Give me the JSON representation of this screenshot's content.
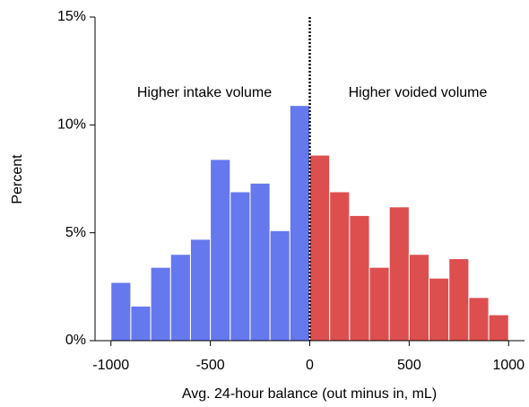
{
  "chart_data": {
    "type": "histogram",
    "x_label": "Avg. 24-hour balance (out minus in, mL)",
    "y_label": "Percent",
    "annotations": [
      "Higher intake volume",
      "Higher voided volume"
    ],
    "series": [
      {
        "color": "#6678ee",
        "bins": [
          -1000,
          -900,
          -800,
          -700,
          -600,
          -500,
          -400,
          -300,
          -200,
          -100,
          0
        ],
        "values": [
          2.7,
          1.6,
          3.4,
          4.0,
          4.7,
          8.4,
          6.9,
          7.3,
          5.1,
          10.9
        ]
      },
      {
        "color": "#dd4f4f",
        "bins": [
          0,
          100,
          200,
          300,
          400,
          500,
          600,
          700,
          800,
          900,
          1000
        ],
        "values": [
          8.6,
          6.9,
          5.8,
          3.4,
          6.2,
          4.0,
          2.9,
          3.8,
          2.0,
          1.2
        ]
      }
    ],
    "reference_line": {
      "x": 0,
      "style": "dotted"
    },
    "xlim": [
      -1080,
      1080
    ],
    "xticks": [
      -1000,
      -500,
      0,
      500,
      1000
    ],
    "ylim": [
      0,
      15
    ],
    "yticks": [
      {
        "value": 0,
        "label": "0%"
      },
      {
        "value": 5,
        "label": "5%"
      },
      {
        "value": 10,
        "label": "10%"
      },
      {
        "value": 15,
        "label": "15%"
      }
    ]
  }
}
